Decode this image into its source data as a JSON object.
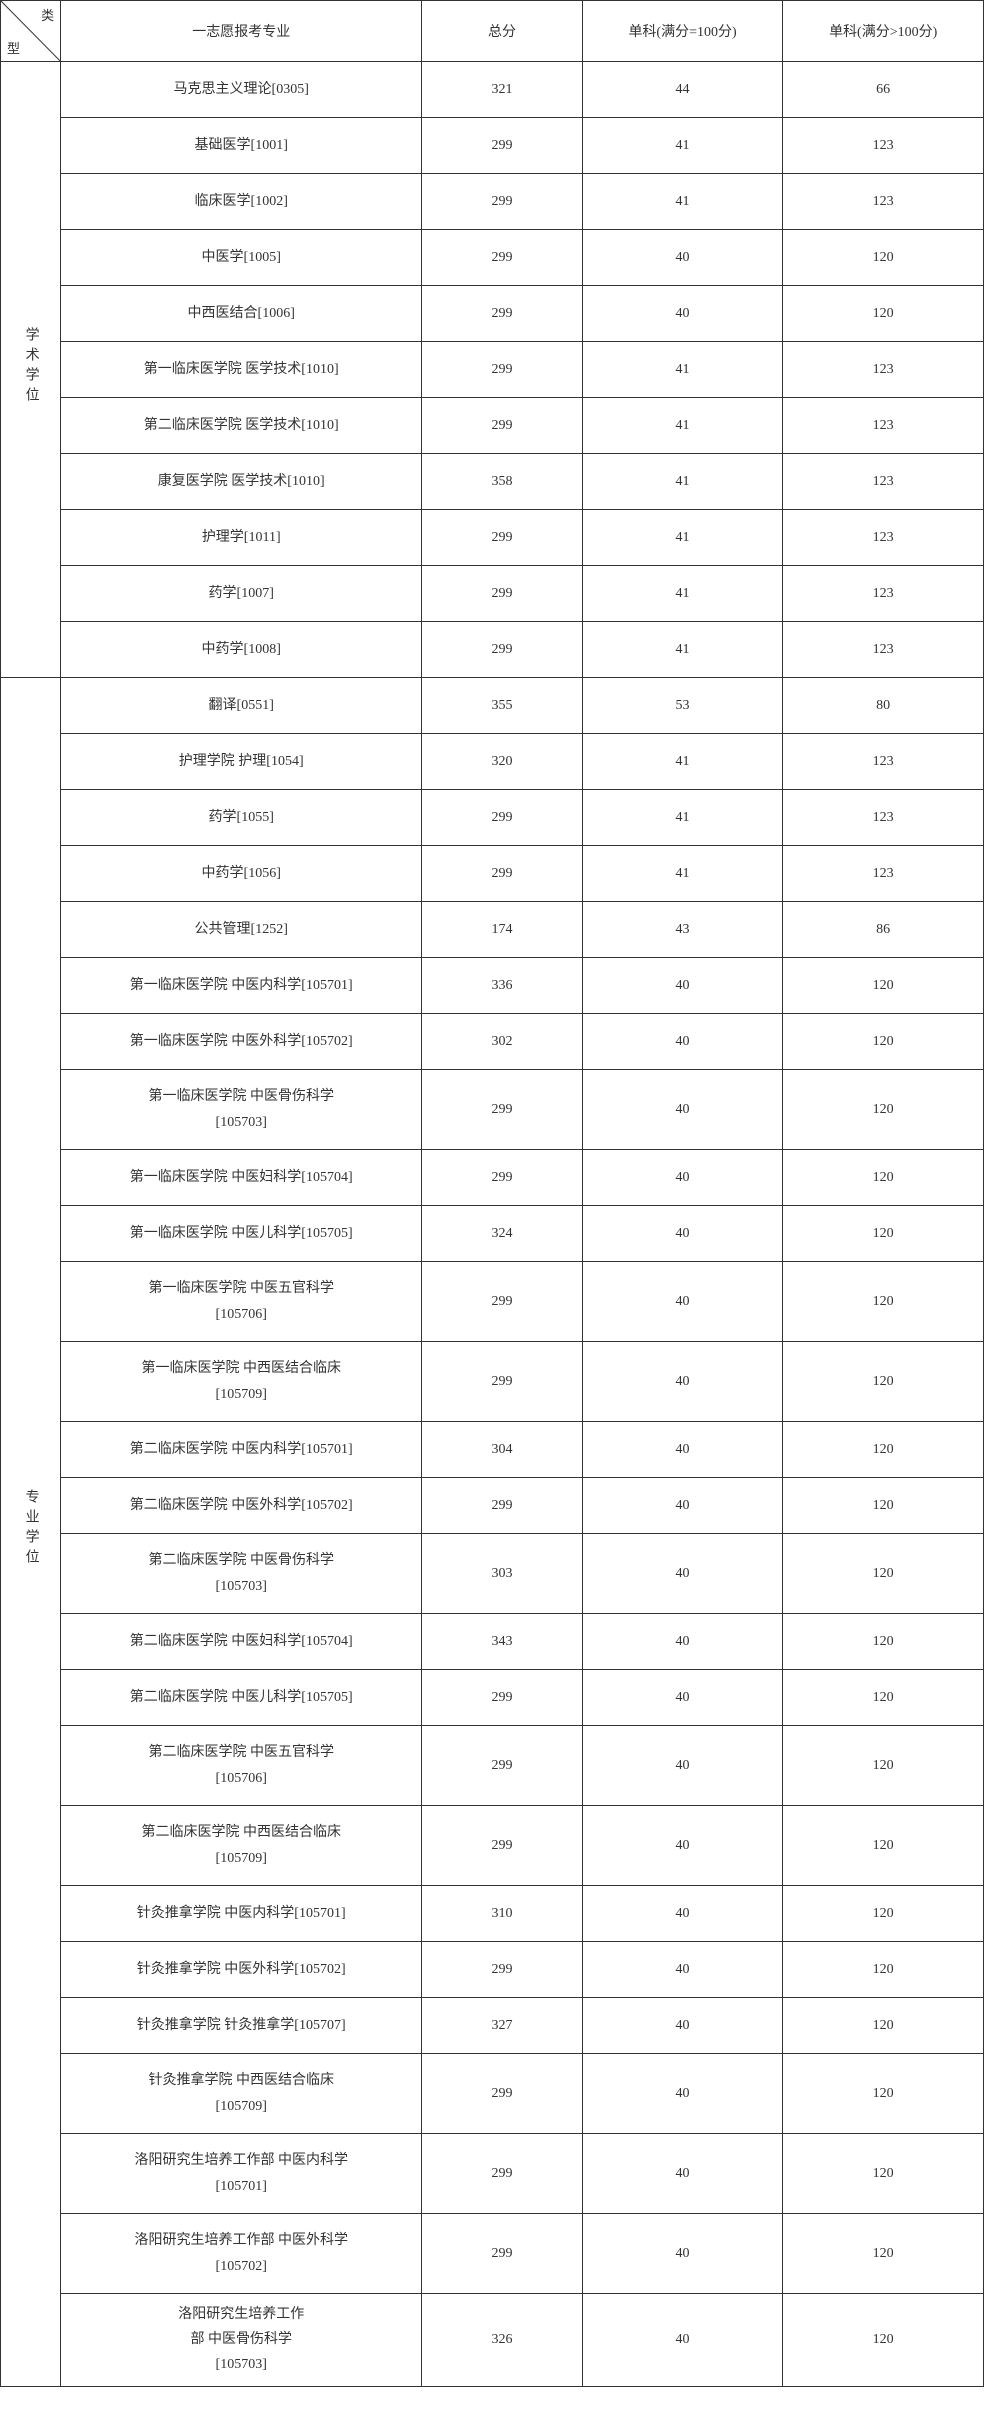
{
  "headers": {
    "type_top": "类",
    "type_bot": "型",
    "major": "一志愿报考专业",
    "total": "总分",
    "sub100": "单科(满分=100分)",
    "subgt100": "单科(满分>100分)"
  },
  "groups": [
    {
      "label": "学术学位",
      "rows": [
        {
          "major": "马克思主义理论[0305]",
          "total": "321",
          "s1": "44",
          "s2": "66",
          "tall": false
        },
        {
          "major": "基础医学[1001]",
          "total": "299",
          "s1": "41",
          "s2": "123",
          "tall": false
        },
        {
          "major": "临床医学[1002]",
          "total": "299",
          "s1": "41",
          "s2": "123",
          "tall": false
        },
        {
          "major": "中医学[1005]",
          "total": "299",
          "s1": "40",
          "s2": "120",
          "tall": false
        },
        {
          "major": "中西医结合[1006]",
          "total": "299",
          "s1": "40",
          "s2": "120",
          "tall": false
        },
        {
          "major": "第一临床医学院 医学技术[1010]",
          "total": "299",
          "s1": "41",
          "s2": "123",
          "tall": false
        },
        {
          "major": "第二临床医学院 医学技术[1010]",
          "total": "299",
          "s1": "41",
          "s2": "123",
          "tall": false
        },
        {
          "major": "康复医学院 医学技术[1010]",
          "total": "358",
          "s1": "41",
          "s2": "123",
          "tall": false
        },
        {
          "major": "护理学[1011]",
          "total": "299",
          "s1": "41",
          "s2": "123",
          "tall": false
        },
        {
          "major": "药学[1007]",
          "total": "299",
          "s1": "41",
          "s2": "123",
          "tall": false
        },
        {
          "major": "中药学[1008]",
          "total": "299",
          "s1": "41",
          "s2": "123",
          "tall": false
        }
      ]
    },
    {
      "label": "专业学位",
      "rows": [
        {
          "major": "翻译[0551]",
          "total": "355",
          "s1": "53",
          "s2": "80",
          "tall": false
        },
        {
          "major": "护理学院 护理[1054]",
          "total": "320",
          "s1": "41",
          "s2": "123",
          "tall": false
        },
        {
          "major": "药学[1055]",
          "total": "299",
          "s1": "41",
          "s2": "123",
          "tall": false
        },
        {
          "major": "中药学[1056]",
          "total": "299",
          "s1": "41",
          "s2": "123",
          "tall": false
        },
        {
          "major": "公共管理[1252]",
          "total": "174",
          "s1": "43",
          "s2": "86",
          "tall": false
        },
        {
          "major": "第一临床医学院 中医内科学[105701]",
          "total": "336",
          "s1": "40",
          "s2": "120",
          "tall": false
        },
        {
          "major": "第一临床医学院 中医外科学[105702]",
          "total": "302",
          "s1": "40",
          "s2": "120",
          "tall": false
        },
        {
          "major": "第一临床医学院 中医骨伤科学\n[105703]",
          "total": "299",
          "s1": "40",
          "s2": "120",
          "tall": true
        },
        {
          "major": "第一临床医学院 中医妇科学[105704]",
          "total": "299",
          "s1": "40",
          "s2": "120",
          "tall": false
        },
        {
          "major": "第一临床医学院 中医儿科学[105705]",
          "total": "324",
          "s1": "40",
          "s2": "120",
          "tall": false
        },
        {
          "major": "第一临床医学院 中医五官科学\n[105706]",
          "total": "299",
          "s1": "40",
          "s2": "120",
          "tall": true
        },
        {
          "major": "第一临床医学院 中西医结合临床\n[105709]",
          "total": "299",
          "s1": "40",
          "s2": "120",
          "tall": true
        },
        {
          "major": "第二临床医学院 中医内科学[105701]",
          "total": "304",
          "s1": "40",
          "s2": "120",
          "tall": false
        },
        {
          "major": "第二临床医学院 中医外科学[105702]",
          "total": "299",
          "s1": "40",
          "s2": "120",
          "tall": false
        },
        {
          "major": "第二临床医学院 中医骨伤科学\n[105703]",
          "total": "303",
          "s1": "40",
          "s2": "120",
          "tall": true
        },
        {
          "major": "第二临床医学院 中医妇科学[105704]",
          "total": "343",
          "s1": "40",
          "s2": "120",
          "tall": false
        },
        {
          "major": "第二临床医学院 中医儿科学[105705]",
          "total": "299",
          "s1": "40",
          "s2": "120",
          "tall": false
        },
        {
          "major": "第二临床医学院 中医五官科学\n[105706]",
          "total": "299",
          "s1": "40",
          "s2": "120",
          "tall": true
        },
        {
          "major": "第二临床医学院 中西医结合临床\n[105709]",
          "total": "299",
          "s1": "40",
          "s2": "120",
          "tall": true
        },
        {
          "major": "针灸推拿学院 中医内科学[105701]",
          "total": "310",
          "s1": "40",
          "s2": "120",
          "tall": false
        },
        {
          "major": "针灸推拿学院 中医外科学[105702]",
          "total": "299",
          "s1": "40",
          "s2": "120",
          "tall": false
        },
        {
          "major": "针灸推拿学院 针灸推拿学[105707]",
          "total": "327",
          "s1": "40",
          "s2": "120",
          "tall": false
        },
        {
          "major": "针灸推拿学院 中西医结合临床\n[105709]",
          "total": "299",
          "s1": "40",
          "s2": "120",
          "tall": true
        },
        {
          "major": "洛阳研究生培养工作部 中医内科学\n[105701]",
          "total": "299",
          "s1": "40",
          "s2": "120",
          "tall": true
        },
        {
          "major": "洛阳研究生培养工作部 中医外科学\n[105702]",
          "total": "299",
          "s1": "40",
          "s2": "120",
          "tall": true
        },
        {
          "major": "洛阳研究生培养工作\n部 中医骨伤科学\n[105703]",
          "total": "326",
          "s1": "40",
          "s2": "120",
          "tall": true
        }
      ]
    }
  ]
}
